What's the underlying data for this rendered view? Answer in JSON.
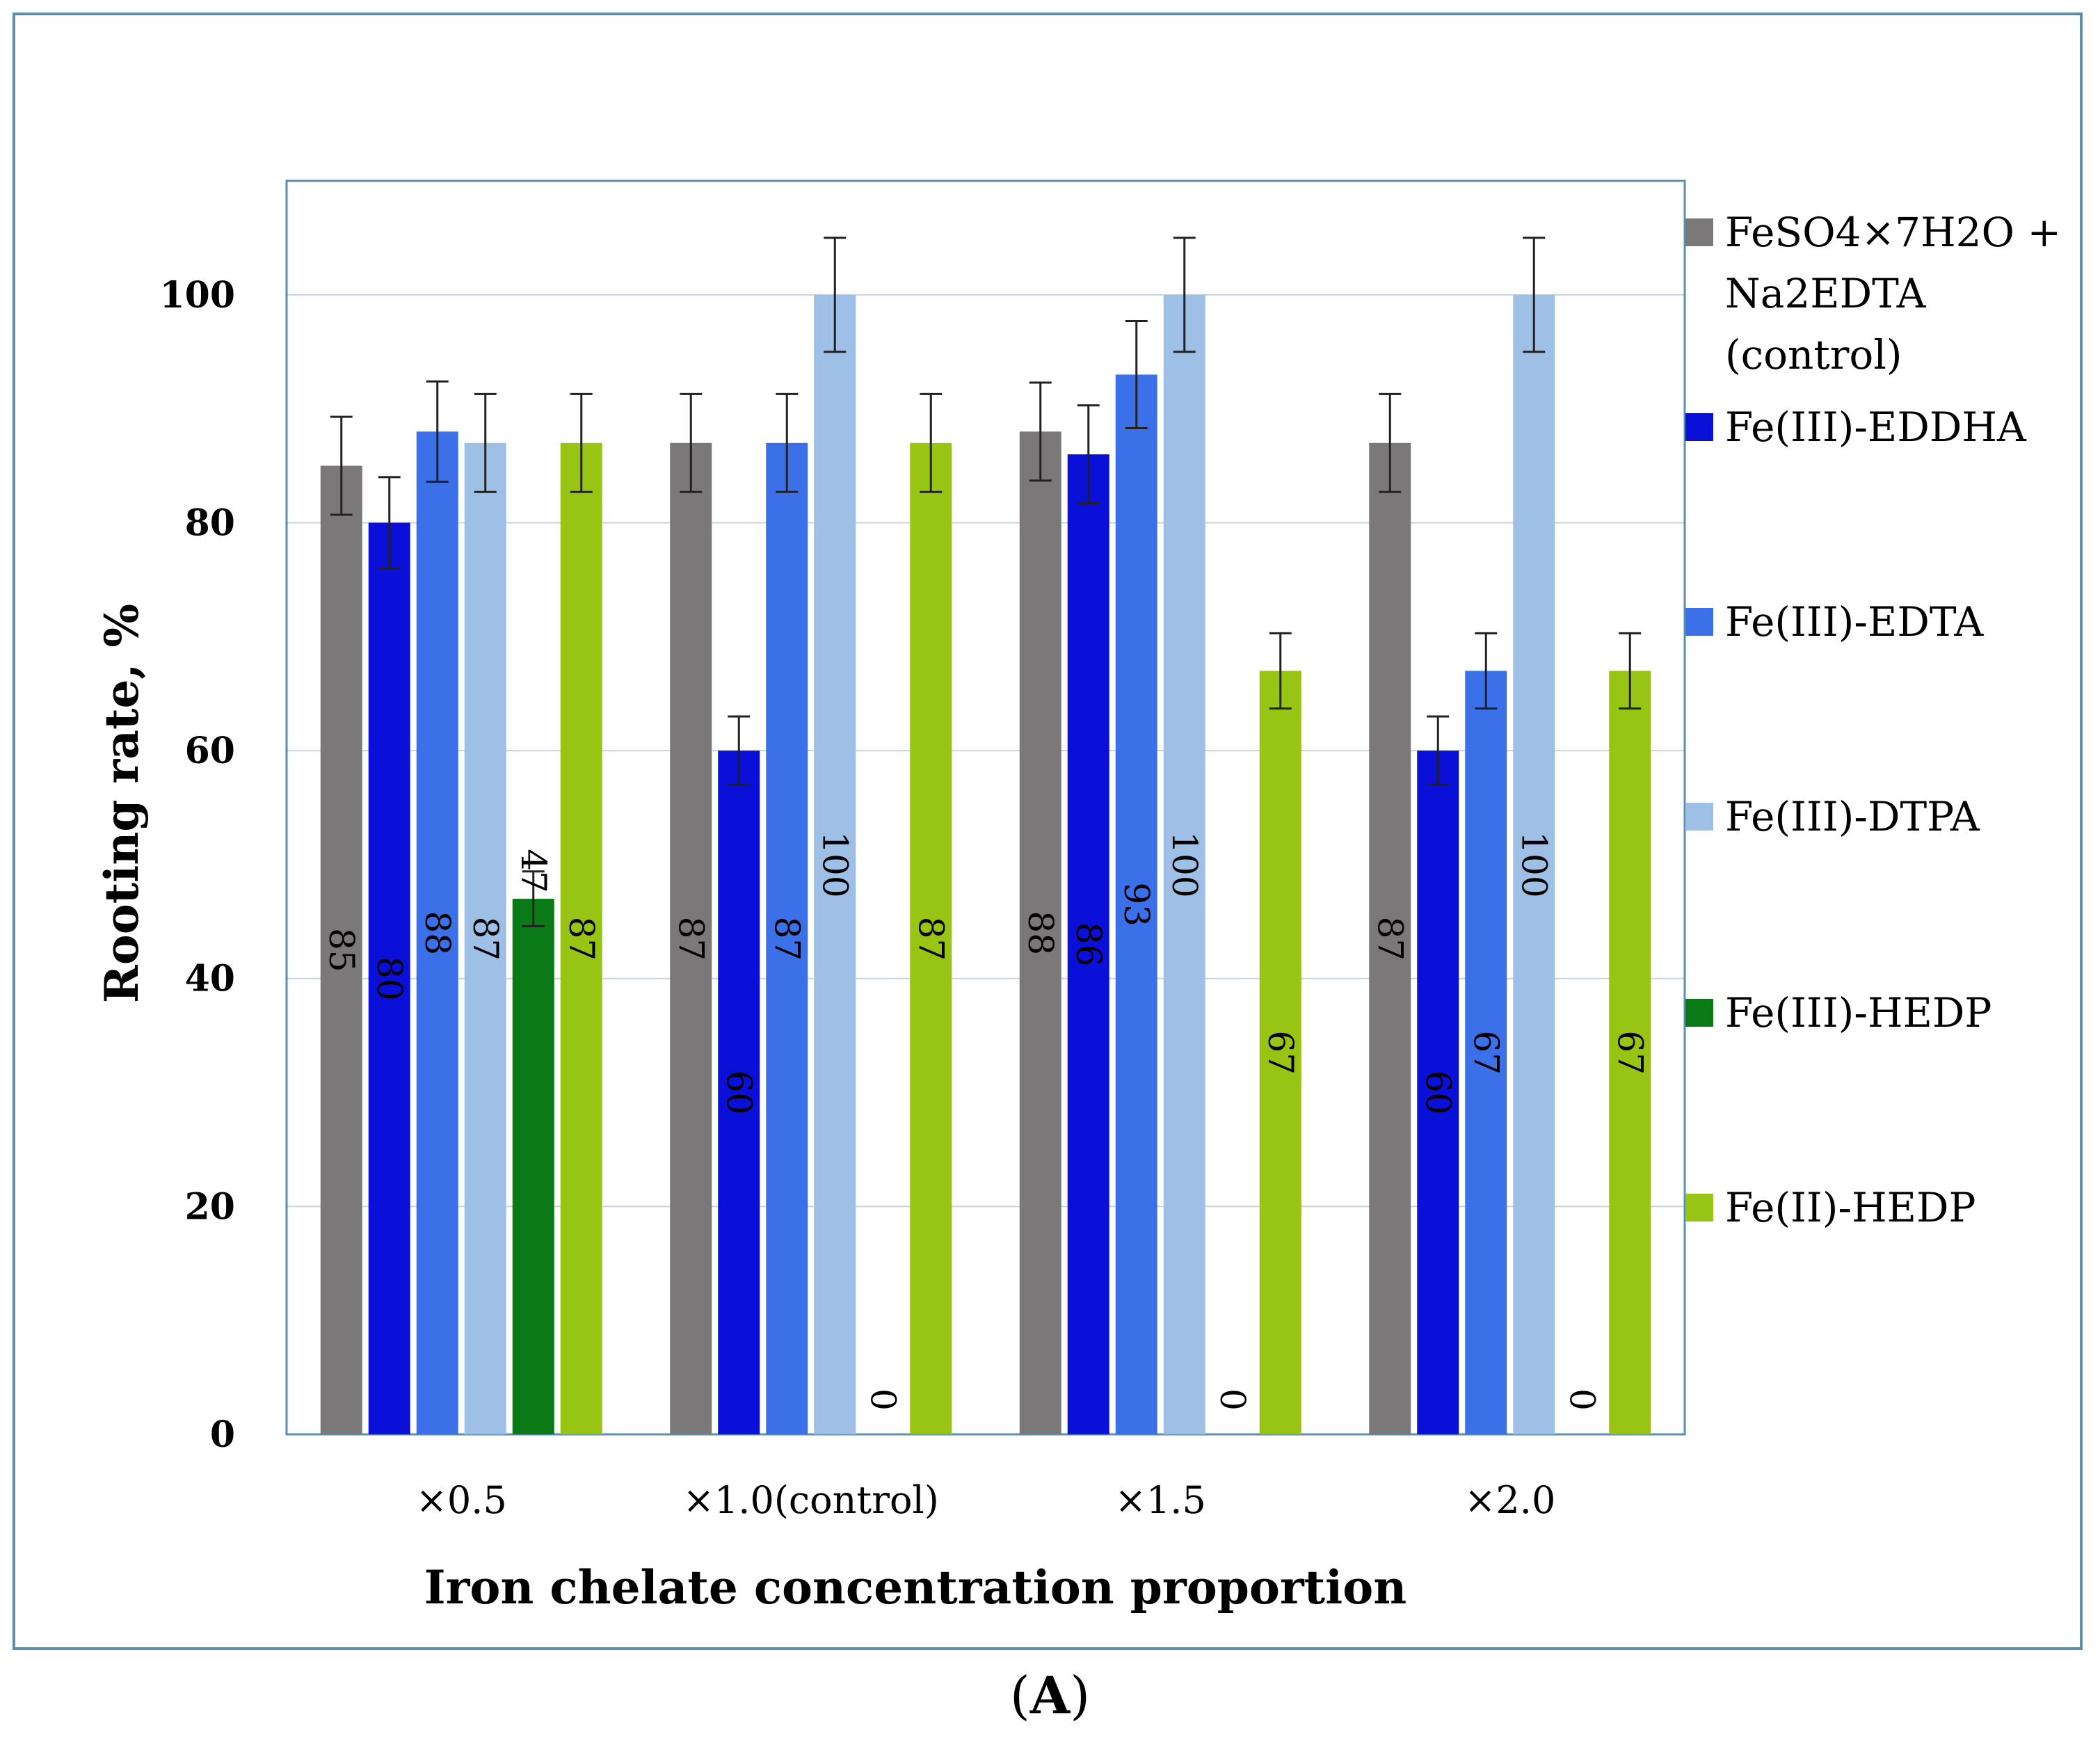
{
  "chart_data": {
    "type": "bar",
    "title": "",
    "xlabel": "Iron chelate concentration proportion",
    "ylabel": "Rooting rate, %",
    "ylim": [
      0,
      110
    ],
    "yticks": [
      0,
      20,
      40,
      60,
      80,
      100
    ],
    "grid": true,
    "legend_position": "right",
    "categories": [
      "×0.5",
      "×1.0(control)",
      "×1.5",
      "×2.0"
    ],
    "series": [
      {
        "name": "FeSO4×7H2O + Na2EDTA (control)",
        "legend_lines": [
          "FeSO4×7H2O +",
          "Na2EDTA",
          "(control)"
        ],
        "color": "#7a7878",
        "values": [
          85,
          87,
          88,
          87
        ],
        "errors": [
          4.3,
          4.3,
          4.3,
          4.3
        ]
      },
      {
        "name": "Fe(III)-EDDHA",
        "legend_lines": [
          "Fe(III)-EDDHA"
        ],
        "color": "#0a10d8",
        "values": [
          80,
          60,
          86,
          60
        ],
        "errors": [
          4.0,
          3.0,
          4.3,
          3.0
        ]
      },
      {
        "name": "Fe(III)-EDTA",
        "legend_lines": [
          "Fe(III)-EDTA"
        ],
        "color": "#3b70e8",
        "values": [
          88,
          87,
          93,
          67
        ],
        "errors": [
          4.4,
          4.3,
          4.7,
          3.3
        ]
      },
      {
        "name": "Fe(III)-DTPA",
        "legend_lines": [
          "Fe(III)-DTPA"
        ],
        "color": "#9ec0e6",
        "values": [
          87,
          100,
          100,
          100
        ],
        "errors": [
          4.3,
          5.0,
          5.0,
          5.0
        ]
      },
      {
        "name": "Fe(III)-HEDP",
        "legend_lines": [
          "Fe(III)-HEDP"
        ],
        "color": "#0a7a16",
        "values": [
          47,
          0,
          0,
          0
        ],
        "errors": [
          2.4,
          0,
          0,
          0
        ]
      },
      {
        "name": "Fe(II)-HEDP",
        "legend_lines": [
          "Fe(II)-HEDP"
        ],
        "color": "#98c414",
        "values": [
          87,
          87,
          67,
          67
        ],
        "errors": [
          4.3,
          4.3,
          3.3,
          3.3
        ]
      }
    ]
  },
  "caption": {
    "open": "(",
    "letter": "A",
    "close": ")"
  }
}
